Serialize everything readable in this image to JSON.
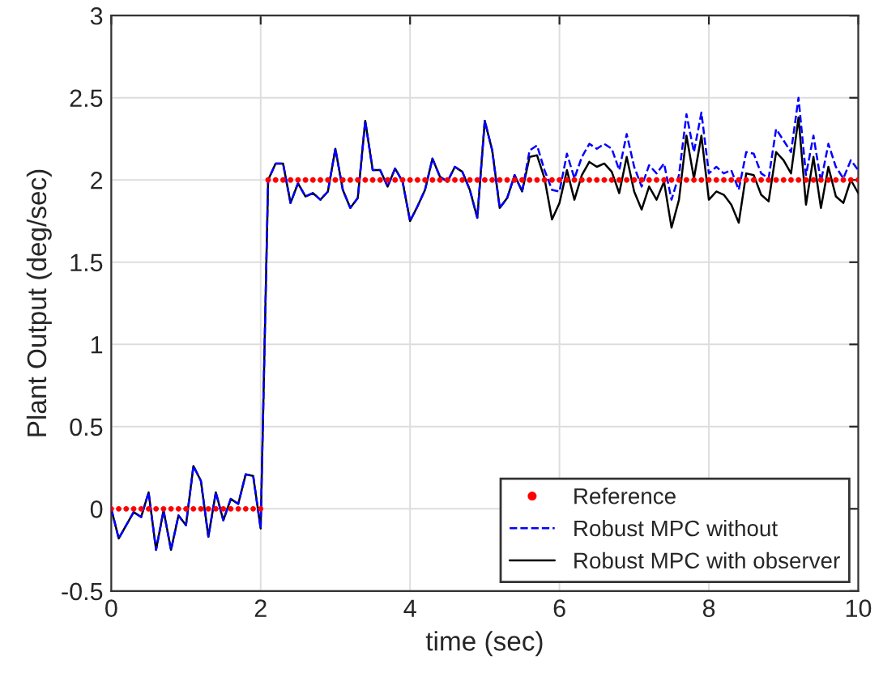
{
  "chart_data": {
    "type": "line",
    "xlabel": "time (sec)",
    "ylabel": "Plant Output (deg/sec)",
    "x": [
      0,
      0.1,
      0.2,
      0.3,
      0.4,
      0.5,
      0.6,
      0.7,
      0.8,
      0.9,
      1,
      1.1,
      1.2,
      1.3,
      1.4,
      1.5,
      1.6,
      1.7,
      1.8,
      1.9,
      2,
      2.1,
      2.2,
      2.3,
      2.4,
      2.5,
      2.6,
      2.7,
      2.8,
      2.9,
      3,
      3.1,
      3.2,
      3.3,
      3.4,
      3.5,
      3.6,
      3.7,
      3.8,
      3.9,
      4,
      4.1,
      4.2,
      4.3,
      4.4,
      4.5,
      4.6,
      4.7,
      4.8,
      4.9,
      5,
      5.1,
      5.2,
      5.3,
      5.4,
      5.5,
      5.6,
      5.7,
      5.8,
      5.9,
      6,
      6.1,
      6.2,
      6.3,
      6.4,
      6.5,
      6.6,
      6.7,
      6.8,
      6.9,
      7,
      7.1,
      7.2,
      7.3,
      7.4,
      7.5,
      7.6,
      7.7,
      7.8,
      7.9,
      8,
      8.1,
      8.2,
      8.3,
      8.4,
      8.5,
      8.6,
      8.7,
      8.8,
      8.9,
      9,
      9.1,
      9.2,
      9.3,
      9.4,
      9.5,
      9.6,
      9.7,
      9.8,
      9.9,
      10
    ],
    "series": [
      {
        "name": "Reference",
        "type": "scatter",
        "marker": "circle",
        "color": "#ff0000",
        "values": [
          0,
          0,
          0,
          0,
          0,
          0,
          0,
          0,
          0,
          0,
          0,
          0,
          0,
          0,
          0,
          0,
          0,
          0,
          0,
          0,
          0,
          2,
          2,
          2,
          2,
          2,
          2,
          2,
          2,
          2,
          2,
          2,
          2,
          2,
          2,
          2,
          2,
          2,
          2,
          2,
          2,
          2,
          2,
          2,
          2,
          2,
          2,
          2,
          2,
          2,
          2,
          2,
          2,
          2,
          2,
          2,
          2,
          2,
          2,
          2,
          2,
          2,
          2,
          2,
          2,
          2,
          2,
          2,
          2,
          2,
          2,
          2,
          2,
          2,
          2,
          2,
          2,
          2,
          2,
          2,
          2,
          2,
          2,
          2,
          2,
          2,
          2,
          2,
          2,
          2,
          2,
          2,
          2,
          2,
          2,
          2,
          2,
          2,
          2,
          2,
          2
        ]
      },
      {
        "name": "Robust MPC without",
        "line_style": "dashed",
        "color": "#0000ff",
        "values": [
          0,
          -0.18,
          -0.1,
          -0.02,
          -0.05,
          0.1,
          -0.25,
          -0.01,
          -0.25,
          -0.04,
          -0.1,
          0.26,
          0.17,
          -0.17,
          0.1,
          -0.07,
          0.06,
          0.03,
          0.21,
          0.2,
          -0.12,
          2.0,
          2.1,
          2.1,
          1.86,
          1.98,
          1.9,
          1.92,
          1.88,
          1.93,
          2.19,
          1.94,
          1.83,
          1.89,
          2.36,
          2.06,
          2.06,
          1.96,
          2.07,
          1.99,
          1.75,
          1.84,
          1.94,
          2.13,
          2.02,
          1.99,
          2.08,
          2.05,
          1.94,
          1.77,
          2.36,
          2.18,
          1.83,
          1.89,
          2.03,
          1.93,
          2.18,
          2.21,
          2.06,
          1.94,
          1.93,
          2.16,
          2.01,
          2.14,
          2.22,
          2.19,
          2.22,
          2.19,
          2.06,
          2.28,
          2.08,
          1.96,
          2.09,
          2.04,
          2.1,
          1.88,
          2.03,
          2.4,
          2.17,
          2.41,
          2.04,
          2.08,
          2.04,
          2.06,
          1.94,
          2.17,
          2.16,
          2.04,
          2.01,
          2.31,
          2.24,
          2.17,
          2.5,
          2.03,
          2.27,
          1.99,
          2.22,
          2.08,
          2.01,
          2.12,
          2.06
        ]
      },
      {
        "name": "Robust MPC with observer",
        "line_style": "solid",
        "color": "#000000",
        "values": [
          0,
          -0.18,
          -0.1,
          -0.02,
          -0.05,
          0.1,
          -0.25,
          -0.01,
          -0.25,
          -0.04,
          -0.1,
          0.26,
          0.17,
          -0.17,
          0.1,
          -0.07,
          0.06,
          0.03,
          0.21,
          0.2,
          -0.12,
          2.0,
          2.1,
          2.1,
          1.86,
          1.98,
          1.9,
          1.92,
          1.88,
          1.93,
          2.19,
          1.94,
          1.83,
          1.89,
          2.36,
          2.06,
          2.06,
          1.96,
          2.07,
          1.99,
          1.75,
          1.84,
          1.94,
          2.13,
          2.02,
          1.99,
          2.08,
          2.05,
          1.94,
          1.77,
          2.36,
          2.18,
          1.83,
          1.89,
          2.03,
          1.93,
          2.14,
          2.15,
          2.01,
          1.76,
          1.86,
          2.06,
          1.88,
          2.03,
          2.11,
          2.08,
          2.1,
          2.05,
          1.92,
          2.14,
          1.93,
          1.82,
          1.96,
          1.88,
          1.99,
          1.71,
          1.88,
          2.27,
          2.01,
          2.27,
          1.88,
          1.93,
          1.91,
          1.85,
          1.74,
          2.04,
          2.03,
          1.91,
          1.87,
          2.17,
          2.12,
          2.04,
          2.38,
          1.85,
          2.14,
          1.83,
          2.08,
          1.9,
          1.86,
          2.0,
          1.92
        ]
      }
    ],
    "xlim": [
      0,
      10
    ],
    "xticks": [
      0,
      2,
      4,
      6,
      8,
      10
    ],
    "ylim": [
      -0.5,
      3
    ],
    "yticks": [
      -0.5,
      0,
      0.5,
      1,
      1.5,
      2,
      2.5,
      3
    ],
    "grid": true,
    "legend": "bottom right"
  }
}
